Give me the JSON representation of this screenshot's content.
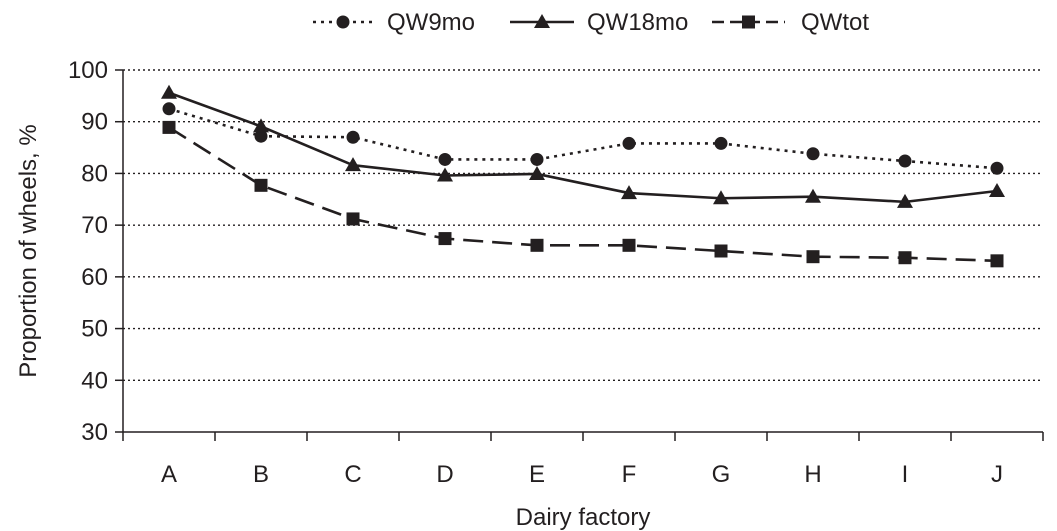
{
  "chart_data": {
    "type": "line",
    "title": "",
    "xlabel": "Dairy factory",
    "ylabel": "Proportion of wheels, %",
    "categories": [
      "A",
      "B",
      "C",
      "D",
      "E",
      "F",
      "G",
      "H",
      "I",
      "J"
    ],
    "ylim": [
      30,
      100
    ],
    "yticks": [
      "30",
      "40",
      "50",
      "60",
      "70",
      "80",
      "90",
      "100"
    ],
    "grid": "horizontal dotted",
    "legend_position": "top",
    "series": [
      {
        "name": "QW9mo",
        "marker": "circle",
        "line_style": "dotted",
        "color": "#231f20",
        "values": [
          92.5,
          87.2,
          87.0,
          82.7,
          82.7,
          85.8,
          85.8,
          83.8,
          82.4,
          81.0
        ]
      },
      {
        "name": "QW18mo",
        "marker": "triangle",
        "line_style": "solid",
        "color": "#231f20",
        "values": [
          95.6,
          89.1,
          81.6,
          79.6,
          79.9,
          76.2,
          75.2,
          75.5,
          74.5,
          76.6
        ]
      },
      {
        "name": "QWtot",
        "marker": "square",
        "line_style": "dashed",
        "color": "#231f20",
        "values": [
          88.9,
          77.7,
          71.2,
          67.4,
          66.1,
          66.1,
          65.0,
          63.9,
          63.7,
          63.1
        ]
      }
    ]
  }
}
